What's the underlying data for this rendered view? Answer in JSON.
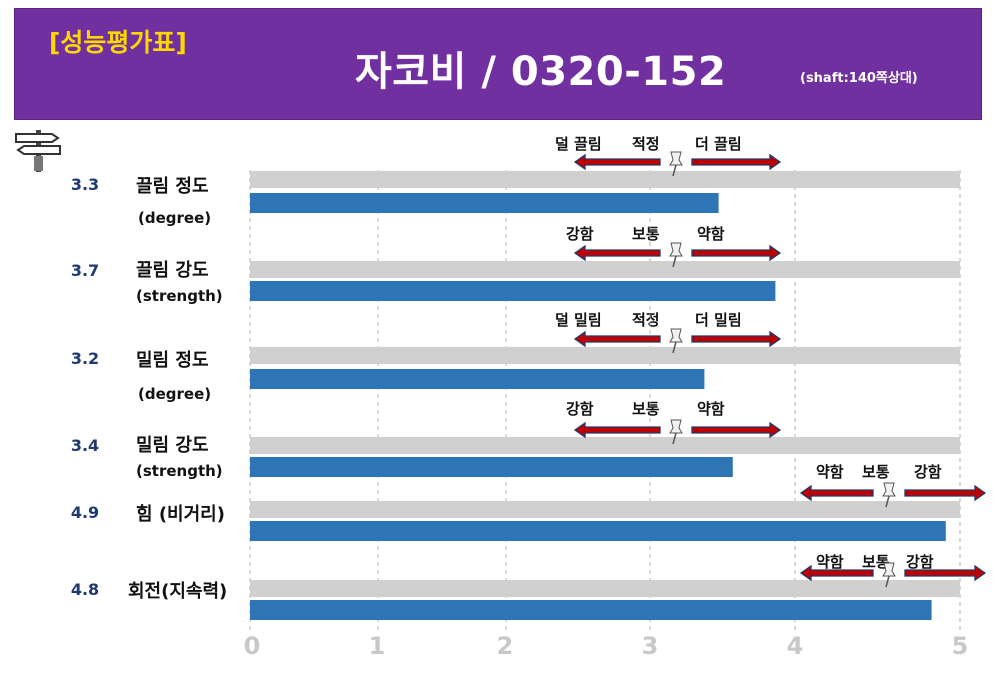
{
  "header": {
    "tag": "[성능평가표]",
    "title": "자코비 / 0320-152",
    "note": "(shaft:140쪽상대)"
  },
  "colors": {
    "header_bg": "#7030a0",
    "tag": "#ffd700",
    "bar_value": "#2e75b6",
    "bar_track": "#d0d0d0",
    "arrow": "#c00000",
    "score_text": "#1f3a6e"
  },
  "chart_data": {
    "type": "bar",
    "orientation": "horizontal",
    "xlim": [
      0,
      5
    ],
    "x_ticks": [
      "0",
      "1",
      "2",
      "3",
      "4",
      "5"
    ],
    "grid": "vertical dashed",
    "series": [
      {
        "values": [
          3.3,
          3.7,
          3.2,
          3.4,
          4.9,
          4.8
        ]
      }
    ],
    "rows": [
      {
        "score": "3.3",
        "label": "끌림 정도",
        "sublabel": "(degree)",
        "value": 3.3,
        "scale": [
          "덜 끌림",
          "적정",
          "더 끌림"
        ],
        "marker": 3
      },
      {
        "score": "3.7",
        "label": "끌림 강도",
        "sublabel": "(strength)",
        "value": 3.7,
        "scale": [
          "강함",
          "보통",
          "약함"
        ],
        "marker": 3
      },
      {
        "score": "3.2",
        "label": "밀림 정도",
        "sublabel": "(degree)",
        "value": 3.2,
        "scale": [
          "덜 밀림",
          "적정",
          "더 밀림"
        ],
        "marker": 3
      },
      {
        "score": "3.4",
        "label": "밀림 강도",
        "sublabel": "(strength)",
        "value": 3.4,
        "scale": [
          "강함",
          "보통",
          "약함"
        ],
        "marker": 3
      },
      {
        "score": "4.9",
        "label": "힘 (비거리)",
        "sublabel": "",
        "value": 4.9,
        "scale": [
          "약함",
          "보통",
          "강함"
        ],
        "marker": 4.5
      },
      {
        "score": "4.8",
        "label": "회전(지속력)",
        "sublabel": "",
        "value": 4.8,
        "scale": [
          "약함",
          "보통",
          "강함"
        ],
        "marker": 4.5
      }
    ]
  }
}
